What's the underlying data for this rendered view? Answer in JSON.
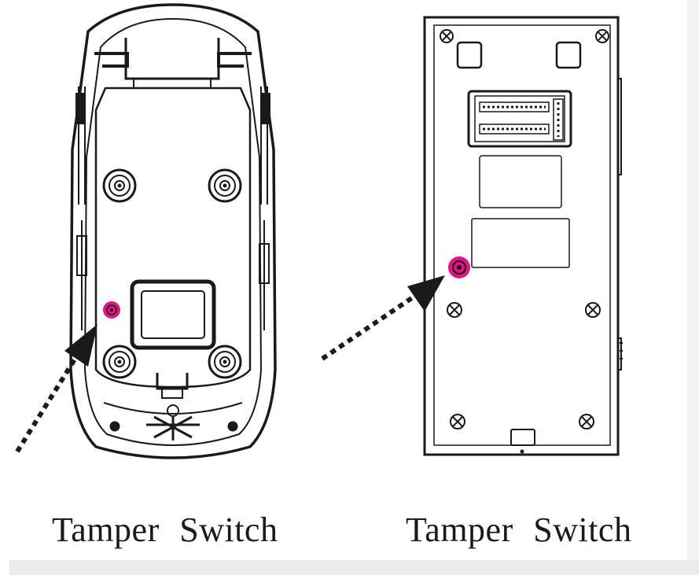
{
  "captions": {
    "left": "Tamper  Switch",
    "right": "Tamper  Switch"
  },
  "colors": {
    "line": "#1a1a1a",
    "highlight": "#e0157f",
    "background": "#ffffff"
  },
  "icons": {
    "left_pointer": "dotted-arrow-icon",
    "right_pointer": "dotted-arrow-icon",
    "left_marker": "tamper-switch-marker-icon",
    "right_marker": "tamper-switch-marker-icon"
  }
}
